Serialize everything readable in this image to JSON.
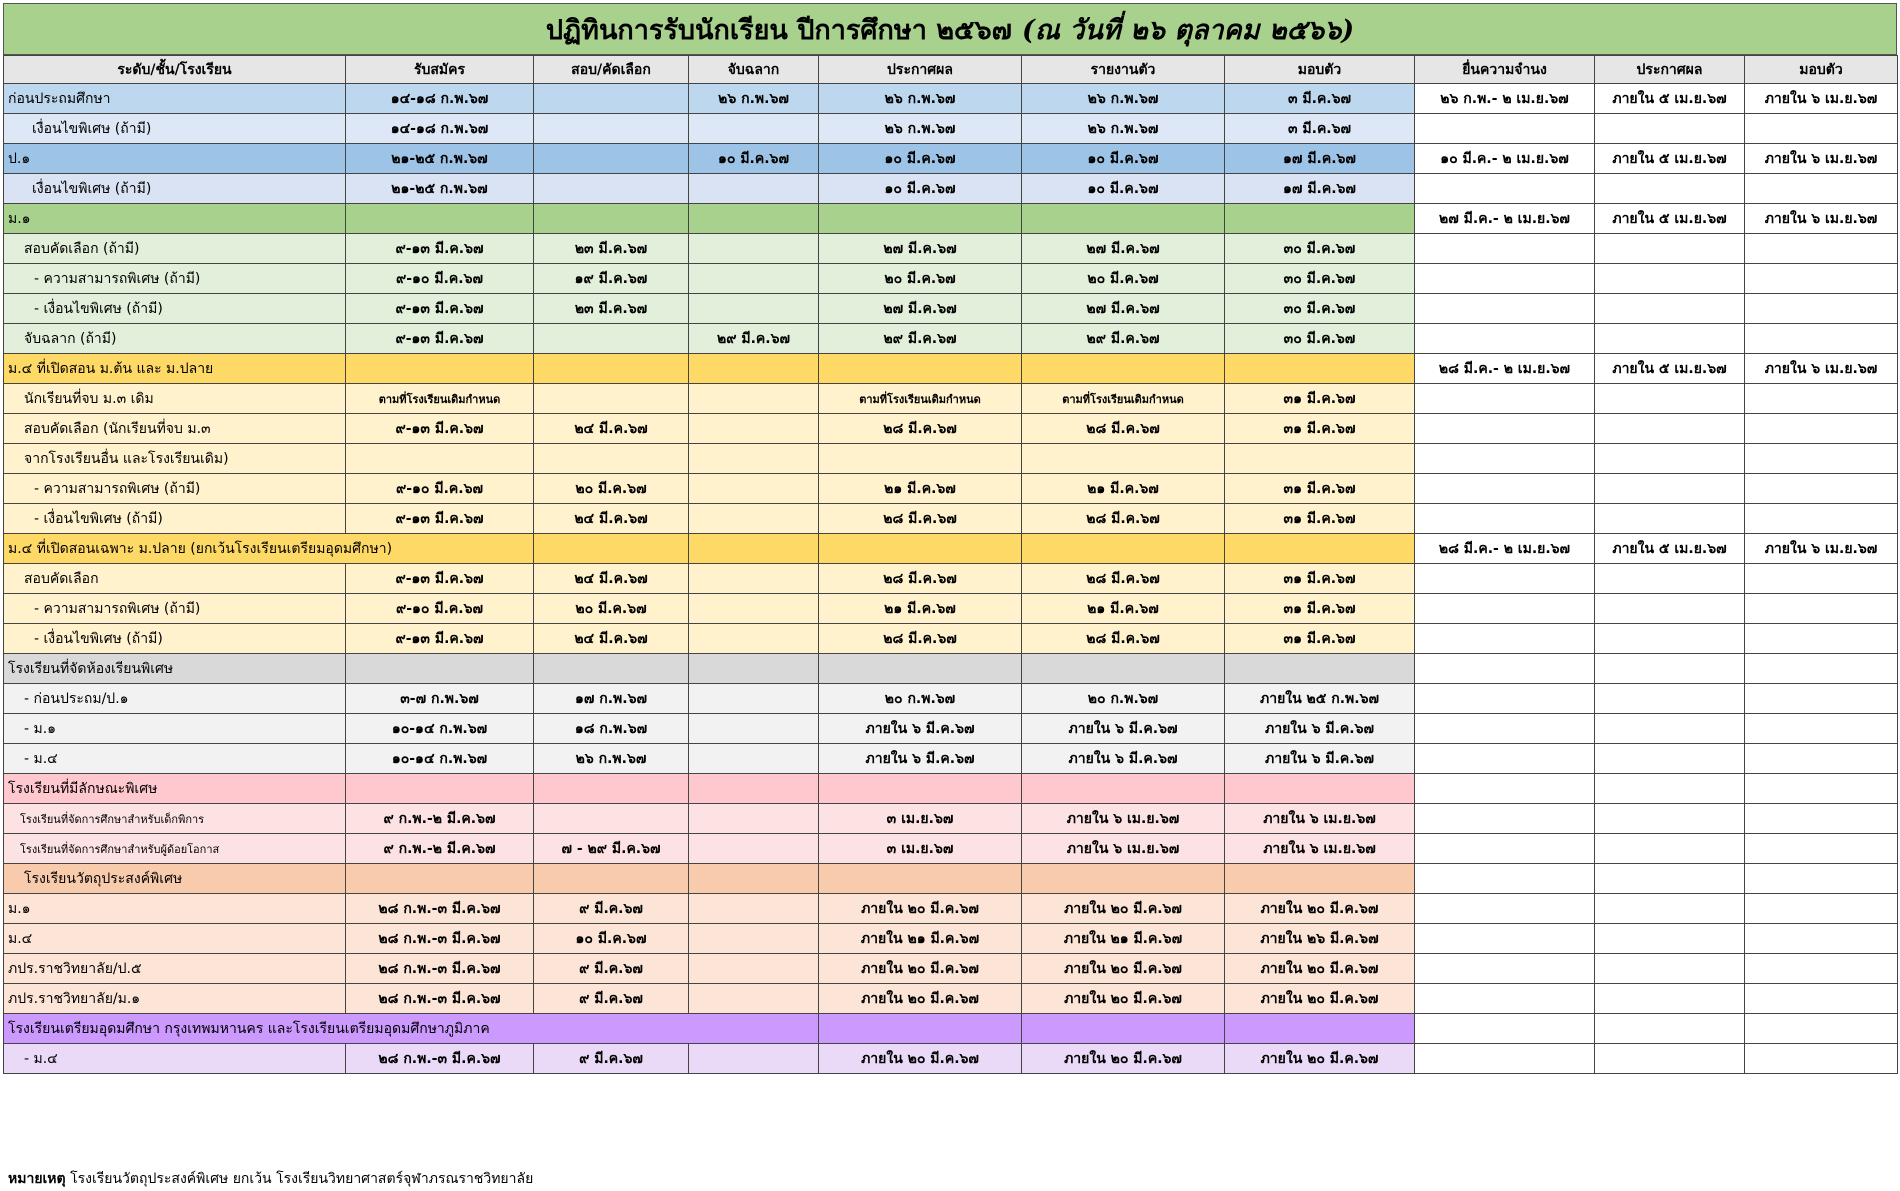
{
  "title": {
    "main": "ปฏิทินการรับนักเรียน ปีการศึกษา ๒๕๖๗",
    "sub": "(ณ วันที่ ๒๖ ตุลาคม  ๒๕๖๖)"
  },
  "headers": [
    "ระดับ/ชั้น/โรงเรียน",
    "รับสมัคร",
    "สอบ/คัดเลือก",
    "จับฉลาก",
    "ประกาศผล",
    "รายงานตัว",
    "มอบตัว",
    "ยื่นความจำนง",
    "ประกาศผล",
    "มอบตัว"
  ],
  "colors": {
    "green_title": "#a9d18e",
    "blue_dark": "#b4cbe9",
    "blue_light": "#dae3f3",
    "blue_mid": "#9dc3e6",
    "green_dark": "#a9d18e",
    "green_light": "#e2efda",
    "yellow_dark": "#ffd966",
    "yellow_light": "#fff2cc",
    "gray_dark": "#d9d9d9",
    "gray_light": "#f2f2f2",
    "pink_dark": "#ffc7ce",
    "pink_light": "#fde2e4",
    "orange_dark": "#f8cbad",
    "orange_light": "#fce4d6",
    "purple_dark": "#cc99ff",
    "purple_light": "#ead9f7"
  },
  "rows": [
    {
      "cells": [
        "ก่อนประถมศึกษา",
        "๑๔-๑๘ ก.พ.๖๗",
        "",
        "๒๖ ก.พ.๖๗",
        "๒๖ ก.พ.๖๗",
        "๒๖ ก.พ.๖๗",
        "๓ มี.ค.๖๗",
        "๒๖ ก.พ.- ๒ เม.ย.๖๗",
        "ภายใน ๕ เม.ย.๖๗",
        "ภายใน ๖ เม.ย.๖๗"
      ],
      "bg": "#bdd7ee",
      "indent": 0,
      "bold": false
    },
    {
      "cells": [
        "เงื่อนไขพิเศษ (ถ้ามี)",
        "๑๔-๑๘ ก.พ.๖๗",
        "",
        "",
        "๒๖ ก.พ.๖๗",
        "๒๖ ก.พ.๖๗",
        "๓ มี.ค.๖๗",
        "",
        "",
        ""
      ],
      "bg": "#dde7f5",
      "indent": 24,
      "bold": false
    },
    {
      "cells": [
        "ป.๑",
        "๒๑-๒๕ ก.พ.๖๗",
        "",
        "๑๐ มี.ค.๖๗",
        "๑๐ มี.ค.๖๗",
        "๑๐ มี.ค.๖๗",
        "๑๗ มี.ค.๖๗",
        "๑๐ มี.ค.- ๒ เม.ย.๖๗",
        "ภายใน ๕ เม.ย.๖๗",
        "ภายใน ๖ เม.ย.๖๗"
      ],
      "bg": "#9dc3e6",
      "indent": 0,
      "bold": false
    },
    {
      "cells": [
        "เงื่อนไขพิเศษ (ถ้ามี)",
        "๒๑-๒๕ ก.พ.๖๗",
        "",
        "",
        "๑๐ มี.ค.๖๗",
        "๑๐ มี.ค.๖๗",
        "๑๗ มี.ค.๖๗",
        "",
        "",
        ""
      ],
      "bg": "#dae3f3",
      "indent": 24,
      "bold": false
    },
    {
      "cells": [
        "ม.๑",
        "",
        "",
        "",
        "",
        "",
        "",
        "๒๗ มี.ค.- ๒ เม.ย.๖๗",
        "ภายใน ๕ เม.ย.๖๗",
        "ภายใน ๖ เม.ย.๖๗"
      ],
      "bg": "#a9d18e",
      "indent": 0,
      "bold": false
    },
    {
      "cells": [
        "สอบคัดเลือก (ถ้ามี)",
        "๙-๑๓ มี.ค.๖๗",
        "๒๓ มี.ค.๖๗",
        "",
        "๒๗ มี.ค.๖๗",
        "๒๗ มี.ค.๖๗",
        "๓๐ มี.ค.๖๗",
        "",
        "",
        ""
      ],
      "bg": "#e2efda",
      "indent": 16,
      "bold": false
    },
    {
      "cells": [
        "- ความสามารถพิเศษ  (ถ้ามี)",
        "๙-๑๐ มี.ค.๖๗",
        "๑๙ มี.ค.๖๗",
        "",
        "๒๐ มี.ค.๖๗",
        "๒๐ มี.ค.๖๗",
        "๓๐ มี.ค.๖๗",
        "",
        "",
        ""
      ],
      "bg": "#e2efda",
      "indent": 26,
      "bold": false
    },
    {
      "cells": [
        "- เงื่อนไขพิเศษ (ถ้ามี)",
        "๙-๑๓ มี.ค.๖๗",
        "๒๓ มี.ค.๖๗",
        "",
        "๒๗ มี.ค.๖๗",
        "๒๗ มี.ค.๖๗",
        "๓๐ มี.ค.๖๗",
        "",
        "",
        ""
      ],
      "bg": "#e2efda",
      "indent": 26,
      "bold": false
    },
    {
      "cells": [
        "จับฉลาก (ถ้ามี)",
        "๙-๑๓ มี.ค.๖๗",
        "",
        "๒๙ มี.ค.๖๗",
        "๒๙ มี.ค.๖๗",
        "๒๙ มี.ค.๖๗",
        "๓๐ มี.ค.๖๗",
        "",
        "",
        ""
      ],
      "bg": "#e2efda",
      "indent": 16,
      "bold": false
    },
    {
      "cells": [
        "ม.๔ ที่เปิดสอน ม.ต้น และ ม.ปลาย",
        "",
        "",
        "",
        "",
        "",
        "",
        "๒๘ มี.ค.- ๒ เม.ย.๖๗",
        "ภายใน ๕ เม.ย.๖๗",
        "ภายใน ๖ เม.ย.๖๗"
      ],
      "bg": "#ffd966",
      "indent": 0,
      "bold": false
    },
    {
      "cells": [
        "นักเรียนที่จบ ม.๓ เดิม",
        "ตามที่โรงเรียนเดิมกำหนด",
        "",
        "",
        "ตามที่โรงเรียนเดิมกำหนด",
        "ตามที่โรงเรียนเดิมกำหนด",
        "๓๑ มี.ค.๖๗",
        "",
        "",
        ""
      ],
      "bg": "#fff2cc",
      "indent": 16,
      "bold": false,
      "small": [
        1,
        4,
        5
      ]
    },
    {
      "cells": [
        "สอบคัดเลือก (นักเรียนที่จบ ม.๓",
        "๙-๑๓ มี.ค.๖๗",
        "๒๔ มี.ค.๖๗",
        "",
        "๒๘ มี.ค.๖๗",
        "๒๘ มี.ค.๖๗",
        "๓๑ มี.ค.๖๗",
        "",
        "",
        ""
      ],
      "bg": "#fff2cc",
      "indent": 16,
      "bold": false
    },
    {
      "cells": [
        "จากโรงเรียนอื่น และโรงเรียนเดิม)",
        "",
        "",
        "",
        "",
        "",
        "",
        "",
        "",
        ""
      ],
      "bg": "#fff2cc",
      "indent": 16,
      "bold": false
    },
    {
      "cells": [
        "- ความสามารถพิเศษ  (ถ้ามี)",
        "๙-๑๐ มี.ค.๖๗",
        "๒๐ มี.ค.๖๗",
        "",
        "๒๑ มี.ค.๖๗",
        "๒๑ มี.ค.๖๗",
        "๓๑ มี.ค.๖๗",
        "",
        "",
        ""
      ],
      "bg": "#fff2cc",
      "indent": 26,
      "bold": false
    },
    {
      "cells": [
        "- เงื่อนไขพิเศษ (ถ้ามี)",
        "๙-๑๓ มี.ค.๖๗",
        "๒๔ มี.ค.๖๗",
        "",
        "๒๘ มี.ค.๖๗",
        "๒๘ มี.ค.๖๗",
        "๓๑ มี.ค.๖๗",
        "",
        "",
        ""
      ],
      "bg": "#fff2cc",
      "indent": 26,
      "bold": false
    },
    {
      "cells": [
        "ม.๔ ที่เปิดสอนเฉพาะ ม.ปลาย (ยกเว้นโรงเรียนเตรียมอุดมศึกษา)",
        "",
        "",
        "",
        "",
        "",
        "",
        "๒๘ มี.ค.- ๒ เม.ย.๖๗",
        "ภายใน ๕ เม.ย.๖๗",
        "ภายใน ๖ เม.ย.๖๗"
      ],
      "bg": "#ffd966",
      "indent": 0,
      "bold": false,
      "span_first": 1
    },
    {
      "cells": [
        "สอบคัดเลือก",
        "๙-๑๓ มี.ค.๖๗",
        "๒๔ มี.ค.๖๗",
        "",
        "๒๘ มี.ค.๖๗",
        "๒๘ มี.ค.๖๗",
        "๓๑ มี.ค.๖๗",
        "",
        "",
        ""
      ],
      "bg": "#fff2cc",
      "indent": 16,
      "bold": false
    },
    {
      "cells": [
        "- ความสามารถพิเศษ  (ถ้ามี)",
        "๙-๑๐ มี.ค.๖๗",
        "๒๐ มี.ค.๖๗",
        "",
        "๒๑ มี.ค.๖๗",
        "๒๑ มี.ค.๖๗",
        "๓๑ มี.ค.๖๗",
        "",
        "",
        ""
      ],
      "bg": "#fff2cc",
      "indent": 26,
      "bold": false
    },
    {
      "cells": [
        "- เงื่อนไขพิเศษ (ถ้ามี)",
        "๙-๑๓ มี.ค.๖๗",
        "๒๔ มี.ค.๖๗",
        "",
        "๒๘ มี.ค.๖๗",
        "๒๘ มี.ค.๖๗",
        "๓๑ มี.ค.๖๗",
        "",
        "",
        ""
      ],
      "bg": "#fff2cc",
      "indent": 26,
      "bold": false
    },
    {
      "cells": [
        "โรงเรียนที่จัดห้องเรียนพิเศษ",
        "",
        "",
        "",
        "",
        "",
        "",
        "",
        "",
        ""
      ],
      "bg": "#d9d9d9",
      "indent": 0,
      "bold": false
    },
    {
      "cells": [
        "- ก่อนประถม/ป.๑",
        "๓-๗ ก.พ.๖๗",
        "๑๗ ก.พ.๖๗",
        "",
        "๒๐ ก.พ.๖๗",
        "๒๐ ก.พ.๖๗",
        "ภายใน ๒๕ ก.พ.๖๗",
        "",
        "",
        ""
      ],
      "bg": "#f2f2f2",
      "indent": 16,
      "bold": false
    },
    {
      "cells": [
        "- ม.๑",
        "๑๐-๑๔ ก.พ.๖๗",
        "๑๘ ก.พ.๖๗",
        "",
        "ภายใน ๖ มี.ค.๖๗",
        "ภายใน ๖ มี.ค.๖๗",
        "ภายใน ๖ มี.ค.๖๗",
        "",
        "",
        ""
      ],
      "bg": "#f2f2f2",
      "indent": 16,
      "bold": false
    },
    {
      "cells": [
        "- ม.๔",
        "๑๐-๑๔ ก.พ.๖๗",
        "๒๖ ก.พ.๖๗",
        "",
        "ภายใน ๖ มี.ค.๖๗",
        "ภายใน ๖ มี.ค.๖๗",
        "ภายใน ๖ มี.ค.๖๗",
        "",
        "",
        ""
      ],
      "bg": "#f2f2f2",
      "indent": 16,
      "bold": false
    },
    {
      "cells": [
        "โรงเรียนที่มีลักษณะพิเศษ",
        "",
        "",
        "",
        "",
        "",
        "",
        "",
        "",
        ""
      ],
      "bg": "#ffc7ce",
      "indent": 0,
      "bold": false
    },
    {
      "cells": [
        "โรงเรียนที่จัดการศึกษาสำหรับเด็กพิการ",
        "๙ ก.พ.-๒ มี.ค.๖๗",
        "",
        "",
        "๓ เม.ย.๖๗",
        "ภายใน ๖ เม.ย.๖๗",
        "ภายใน ๖ เม.ย.๖๗",
        "",
        "",
        ""
      ],
      "bg": "#fde2e4",
      "indent": 12,
      "bold": false,
      "small": [
        0
      ]
    },
    {
      "cells": [
        "โรงเรียนที่จัดการศึกษาสำหรับผู้ด้อยโอกาส",
        "๙ ก.พ.-๒ มี.ค.๖๗",
        "๗ - ๒๙ มี.ค.๖๗",
        "",
        "๓ เม.ย.๖๗",
        "ภายใน ๖ เม.ย.๖๗",
        "ภายใน ๖ เม.ย.๖๗",
        "",
        "",
        ""
      ],
      "bg": "#fde2e4",
      "indent": 12,
      "bold": false,
      "small": [
        0
      ]
    },
    {
      "cells": [
        "โรงเรียนวัตถุประสงค์พิเศษ",
        "",
        "",
        "",
        "",
        "",
        "",
        "",
        "",
        ""
      ],
      "bg": "#f8cbad",
      "indent": 16,
      "bold": false
    },
    {
      "cells": [
        "ม.๑",
        "๒๘ ก.พ.-๓ มี.ค.๖๗",
        "๙ มี.ค.๖๗",
        "",
        "ภายใน ๒๐ มี.ค.๖๗",
        "ภายใน ๒๐ มี.ค.๖๗",
        "ภายใน ๒๐ มี.ค.๖๗",
        "",
        "",
        ""
      ],
      "bg": "#fce4d6",
      "indent": 0,
      "bold": false
    },
    {
      "cells": [
        "ม.๔",
        "๒๘ ก.พ.-๓ มี.ค.๖๗",
        "๑๐ มี.ค.๖๗",
        "",
        "ภายใน ๒๑ มี.ค.๖๗",
        "ภายใน ๒๑ มี.ค.๖๗",
        "ภายใน ๒๖ มี.ค.๖๗",
        "",
        "",
        ""
      ],
      "bg": "#fce4d6",
      "indent": 0,
      "bold": false
    },
    {
      "cells": [
        "ภปร.ราชวิทยาลัย/ป.๕",
        "๒๘ ก.พ.-๓ มี.ค.๖๗",
        "๙ มี.ค.๖๗",
        "",
        "ภายใน ๒๐ มี.ค.๖๗",
        "ภายใน ๒๐ มี.ค.๖๗",
        "ภายใน ๒๐ มี.ค.๖๗",
        "",
        "",
        ""
      ],
      "bg": "#fce4d6",
      "indent": 0,
      "bold": false
    },
    {
      "cells": [
        "ภปร.ราชวิทยาลัย/ม.๑",
        "๒๘ ก.พ.-๓ มี.ค.๖๗",
        "๙ มี.ค.๖๗",
        "",
        "ภายใน ๒๐ มี.ค.๖๗",
        "ภายใน ๒๐ มี.ค.๖๗",
        "ภายใน ๒๐ มี.ค.๖๗",
        "",
        "",
        ""
      ],
      "bg": "#fce4d6",
      "indent": 0,
      "bold": false
    },
    {
      "cells": [
        "โรงเรียนเตรียมอุดมศึกษา กรุงเทพมหานคร และโรงเรียนเตรียมอุดมศึกษาภูมิภาค",
        "",
        "",
        "",
        "",
        "",
        "",
        "",
        "",
        ""
      ],
      "bg": "#cc99ff",
      "indent": 0,
      "bold": false,
      "span_first": 3
    },
    {
      "cells": [
        "- ม.๔",
        "๒๘ ก.พ.-๓ มี.ค.๖๗",
        "๙ มี.ค.๖๗",
        "",
        "ภายใน ๒๐ มี.ค.๖๗",
        "ภายใน ๒๐ มี.ค.๖๗",
        "ภายใน ๒๐ มี.ค.๖๗",
        "",
        "",
        ""
      ],
      "bg": "#ead9f7",
      "indent": 16,
      "bold": false
    }
  ],
  "note": {
    "label": "หมายเหตุ",
    "text": " โรงเรียนวัตถุประสงค์พิเศษ ยกเว้น โรงเรียนวิทยาศาสตร์จุฬาภรณราชวิทยาลัย"
  }
}
